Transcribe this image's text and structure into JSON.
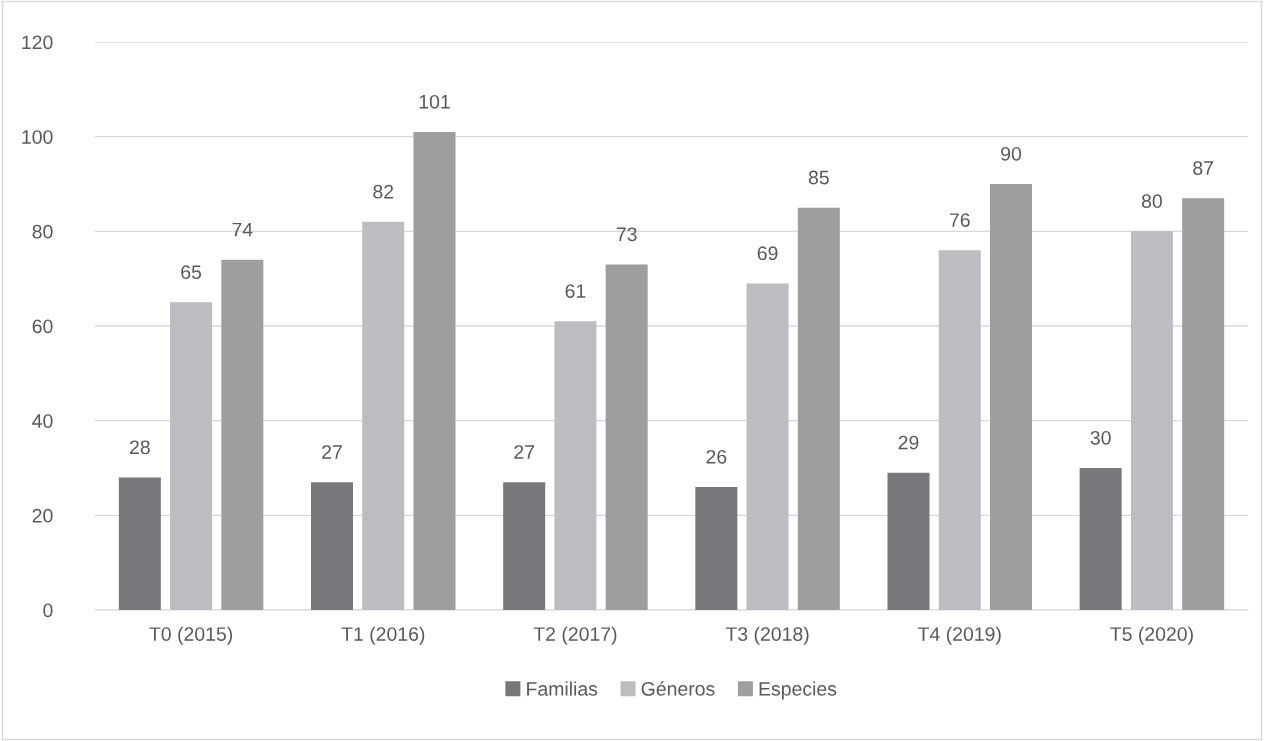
{
  "chart_data": {
    "type": "bar",
    "categories": [
      "T0 (2015)",
      "T1 (2016)",
      "T2 (2017)",
      "T3 (2018)",
      "T4 (2019)",
      "T5 (2020)"
    ],
    "series": [
      {
        "name": "Familias",
        "color": "#77787b",
        "values": [
          28,
          27,
          27,
          26,
          29,
          30
        ]
      },
      {
        "name": "Géneros",
        "color": "#bcbdc0",
        "values": [
          65,
          82,
          61,
          69,
          76,
          80
        ]
      },
      {
        "name": "Especies",
        "color": "#9d9ea0",
        "values": [
          74,
          101,
          73,
          85,
          90,
          87
        ]
      }
    ],
    "ylim": [
      0,
      120
    ],
    "yticks": [
      0,
      20,
      40,
      60,
      80,
      100,
      120
    ],
    "grid": "y",
    "legend": "bottom",
    "data_labels": true
  }
}
